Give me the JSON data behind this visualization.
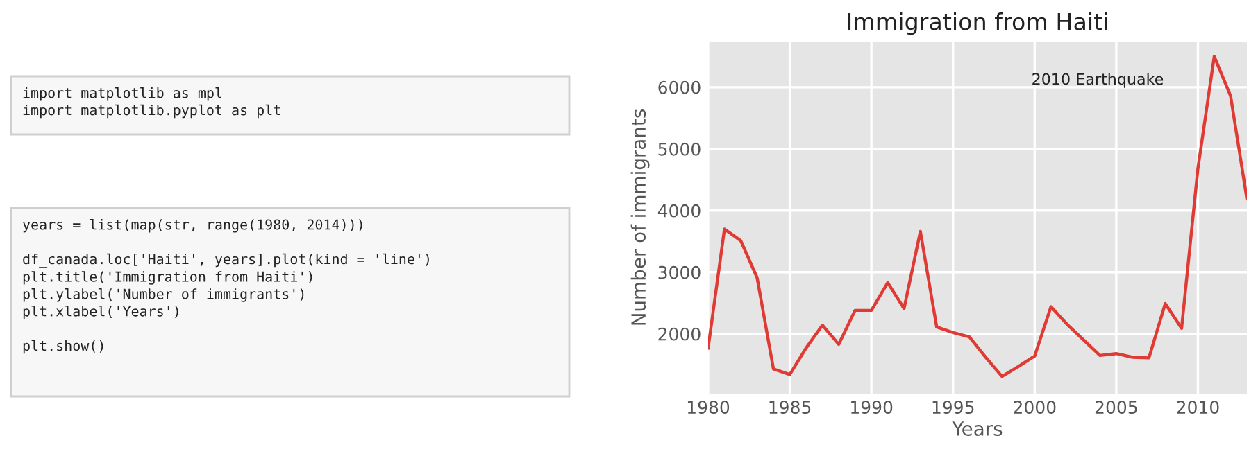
{
  "chart_data": {
    "type": "line",
    "title": "Immigration from Haiti",
    "xlabel": "Years",
    "ylabel": "Number of immigrants",
    "x": [
      1980,
      1981,
      1982,
      1983,
      1984,
      1985,
      1986,
      1987,
      1988,
      1989,
      1990,
      1991,
      1992,
      1993,
      1994,
      1995,
      1996,
      1997,
      1998,
      1999,
      2000,
      2001,
      2002,
      2003,
      2004,
      2005,
      2006,
      2007,
      2008,
      2009,
      2010,
      2011,
      2012,
      2013
    ],
    "series": [
      {
        "color": "#e03a34",
        "values": [
          1770,
          3700,
          3510,
          2910,
          1430,
          1340,
          1770,
          2140,
          1830,
          2380,
          2380,
          2830,
          2410,
          3660,
          2110,
          2020,
          1950,
          1620,
          1310,
          1470,
          1640,
          2440,
          2150,
          1900,
          1650,
          1680,
          1620,
          1610,
          2490,
          2090,
          4680,
          6500,
          5860,
          4190
        ]
      }
    ],
    "xlim": [
      1980,
      2013
    ],
    "xticks": [
      1980,
      1985,
      1990,
      1995,
      2000,
      2005,
      2010
    ],
    "ylim": [
      1030,
      6740
    ],
    "yticks": [
      2000,
      3000,
      4000,
      5000,
      6000
    ],
    "grid": true,
    "line_style": "solid",
    "marker": "none",
    "annotations": [
      "2010 Earthquake",
      "import matplotlib as mpl\nimport matplotlib.pyplot as plt",
      "years = list(map(str, range(1980, 2014)))\n\ndf_canada.loc['Haiti', years].plot(kind = 'line')\nplt.title('Immigration from Haiti')\nplt.ylabel('Number of immigrants')\nplt.xlabel('Years')\n\nplt.show()"
    ]
  }
}
